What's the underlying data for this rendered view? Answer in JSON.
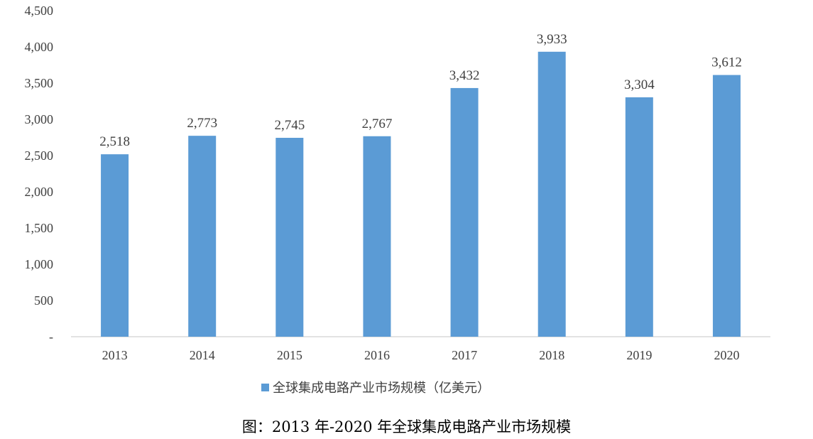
{
  "chart_data": {
    "type": "bar",
    "categories": [
      "2013",
      "2014",
      "2015",
      "2016",
      "2017",
      "2018",
      "2019",
      "2020"
    ],
    "series": [
      {
        "name": "全球集成电路产业市场规模（亿美元）",
        "values": [
          2518,
          2773,
          2745,
          2767,
          3432,
          3933,
          3304,
          3612
        ],
        "labels": [
          "2,518",
          "2,773",
          "2,745",
          "2,767",
          "3,432",
          "3,933",
          "3,304",
          "3,612"
        ],
        "color": "#5B9BD5"
      }
    ],
    "ylim": [
      0,
      4500
    ],
    "yticks": [
      0,
      500,
      1000,
      1500,
      2000,
      2500,
      3000,
      3500,
      4000,
      4500
    ],
    "ytick_labels": [
      "-",
      "500",
      "1,000",
      "1,500",
      "2,000",
      "2,500",
      "3,000",
      "3,500",
      "4,000",
      "4,500"
    ],
    "grid": false,
    "legend_position": "bottom-center",
    "axis_color": "#D9D9D9",
    "caption": "图：2013 年-2020 年全球集成电路产业市场规模"
  }
}
